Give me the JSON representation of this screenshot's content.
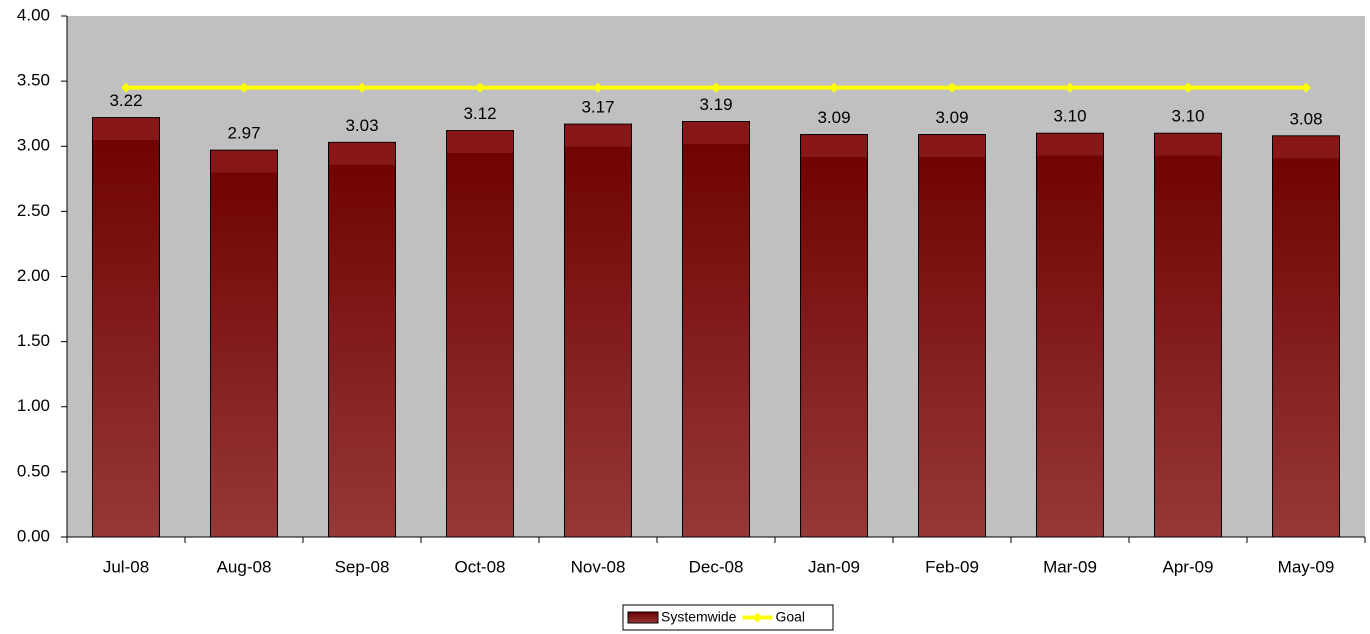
{
  "chart_data": {
    "type": "bar",
    "categories": [
      "Jul-08",
      "Aug-08",
      "Sep-08",
      "Oct-08",
      "Nov-08",
      "Dec-08",
      "Jan-09",
      "Feb-09",
      "Mar-09",
      "Apr-09",
      "May-09"
    ],
    "series": [
      {
        "name": "Systemwide",
        "type": "bar",
        "color": "#8b1a1a",
        "values": [
          3.22,
          2.97,
          3.03,
          3.12,
          3.17,
          3.19,
          3.09,
          3.09,
          3.1,
          3.1,
          3.08
        ],
        "value_labels": [
          "3.22",
          "2.97",
          "3.03",
          "3.12",
          "3.17",
          "3.19",
          "3.09",
          "3.09",
          "3.10",
          "3.10",
          "3.08"
        ]
      },
      {
        "name": "Goal",
        "type": "line",
        "color": "#ffff00",
        "values": [
          3.45,
          3.45,
          3.45,
          3.45,
          3.45,
          3.45,
          3.45,
          3.45,
          3.45,
          3.45,
          3.45
        ]
      }
    ],
    "ylim": [
      0,
      4
    ],
    "yticks": [
      {
        "value": 0,
        "label": "0.00"
      },
      {
        "value": 0.5,
        "label": "0.50"
      },
      {
        "value": 1,
        "label": "1.00"
      },
      {
        "value": 1.5,
        "label": "1.50"
      },
      {
        "value": 2,
        "label": "2.00"
      },
      {
        "value": 2.5,
        "label": "2.50"
      },
      {
        "value": 3,
        "label": "3.00"
      },
      {
        "value": 3.5,
        "label": "3.50"
      },
      {
        "value": 4,
        "label": "4.00"
      }
    ],
    "legend": "bottom"
  }
}
